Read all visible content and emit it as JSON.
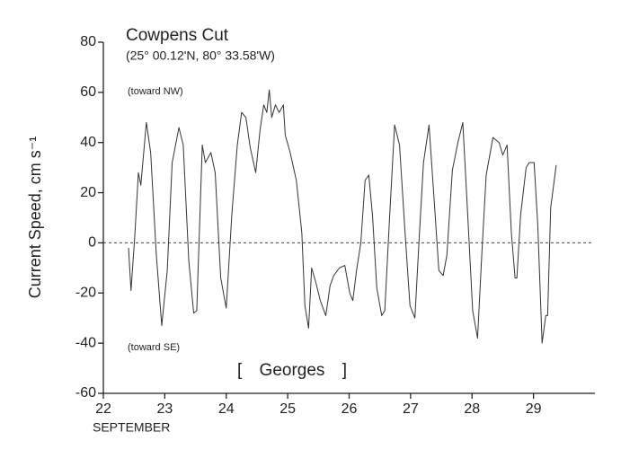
{
  "chart_data": {
    "type": "line",
    "title": "Cowpens Cut",
    "subtitle": "(25° 00.12'N, 80° 33.58'W)",
    "ylabel": "Current Speed, cm s⁻¹",
    "xlabel": "SEPTEMBER",
    "annotations": [
      "(toward NW)",
      "(toward SE)",
      "[ Georges ]"
    ],
    "xlim": [
      22,
      30
    ],
    "xticks": [
      22,
      23,
      24,
      25,
      26,
      27,
      28,
      29
    ],
    "ylim": [
      -60,
      80
    ],
    "yticks": [
      -60,
      -40,
      -20,
      0,
      20,
      40,
      60,
      80
    ],
    "hlines": [
      0
    ],
    "grid": false,
    "series": [
      {
        "color": "#333333",
        "x": [
          22.41,
          22.45,
          22.51,
          22.57,
          22.61,
          22.7,
          22.77,
          22.86,
          22.95,
          23.04,
          23.12,
          23.23,
          23.3,
          23.39,
          23.47,
          23.52,
          23.61,
          23.66,
          23.75,
          23.82,
          23.91,
          24.0,
          24.09,
          24.18,
          24.25,
          24.32,
          24.39,
          24.48,
          24.55,
          24.61,
          24.66,
          24.7,
          24.74,
          24.8,
          24.86,
          24.93,
          24.96,
          25.04,
          25.14,
          25.23,
          25.28,
          25.34,
          25.39,
          25.46,
          25.53,
          25.62,
          25.69,
          25.75,
          25.84,
          25.93,
          26.01,
          26.06,
          26.12,
          26.19,
          26.26,
          26.32,
          26.38,
          26.45,
          26.53,
          26.58,
          26.66,
          26.74,
          26.82,
          26.91,
          26.99,
          27.07,
          27.14,
          27.21,
          27.3,
          27.37,
          27.46,
          27.53,
          27.59,
          27.68,
          27.77,
          27.85,
          27.93,
          28.01,
          28.09,
          28.16,
          28.23,
          28.34,
          28.44,
          28.5,
          28.57,
          28.64,
          28.7,
          28.73,
          28.79,
          28.88,
          28.93,
          29.01,
          29.07,
          29.14,
          29.2,
          29.23,
          29.28,
          29.37
        ],
        "values": [
          -2,
          -19,
          2,
          28,
          23,
          48,
          36,
          -4,
          -33,
          -11,
          32,
          46,
          39,
          -7,
          -28,
          -27,
          39,
          32,
          36,
          28,
          -14,
          -26,
          11,
          39,
          52,
          50,
          38,
          28,
          45,
          55,
          52,
          61,
          50,
          55,
          52,
          55,
          43,
          36,
          25,
          4,
          -25,
          -34,
          -10,
          -16,
          -23,
          -29,
          -17,
          -13,
          -10,
          -9,
          -20,
          -23,
          -11,
          0,
          25,
          27,
          11,
          -18,
          -29,
          -27,
          11,
          47,
          39,
          4,
          -25,
          -30,
          2,
          32,
          47,
          22,
          -11,
          -13,
          -5,
          29,
          40,
          48,
          11,
          -27,
          -38,
          -4,
          27,
          42,
          40,
          35,
          39,
          4,
          -14,
          -14,
          11,
          30,
          32,
          32,
          7,
          -40,
          -29,
          -29,
          14,
          31
        ]
      }
    ]
  }
}
